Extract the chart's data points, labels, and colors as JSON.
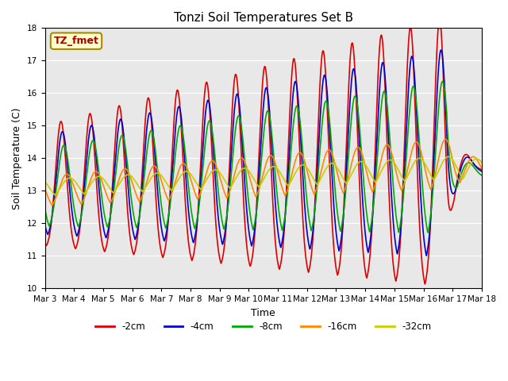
{
  "title": "Tonzi Soil Temperatures Set B",
  "xlabel": "Time",
  "ylabel": "Soil Temperature (C)",
  "ylim": [
    10.0,
    18.0
  ],
  "yticks": [
    10.0,
    11.0,
    12.0,
    13.0,
    14.0,
    15.0,
    16.0,
    17.0,
    18.0
  ],
  "xtick_labels": [
    "Mar 3",
    "Mar 4",
    "Mar 5",
    "Mar 6",
    "Mar 7",
    "Mar 8",
    "Mar 9",
    "Mar 10",
    "Mar 11",
    "Mar 12",
    "Mar 13",
    "Mar 14",
    "Mar 15",
    "Mar 16",
    "Mar 17",
    "Mar 18"
  ],
  "annotation_text": "TZ_fmet",
  "annotation_color": "#aa0000",
  "annotation_bg": "#ffffcc",
  "annotation_edge": "#aa8800",
  "colors": {
    "-2cm": "#dd0000",
    "-4cm": "#0000cc",
    "-8cm": "#00aa00",
    "-16cm": "#ff8800",
    "-32cm": "#cccc00"
  },
  "background_color": "#e8e8e8",
  "n_points": 2000
}
